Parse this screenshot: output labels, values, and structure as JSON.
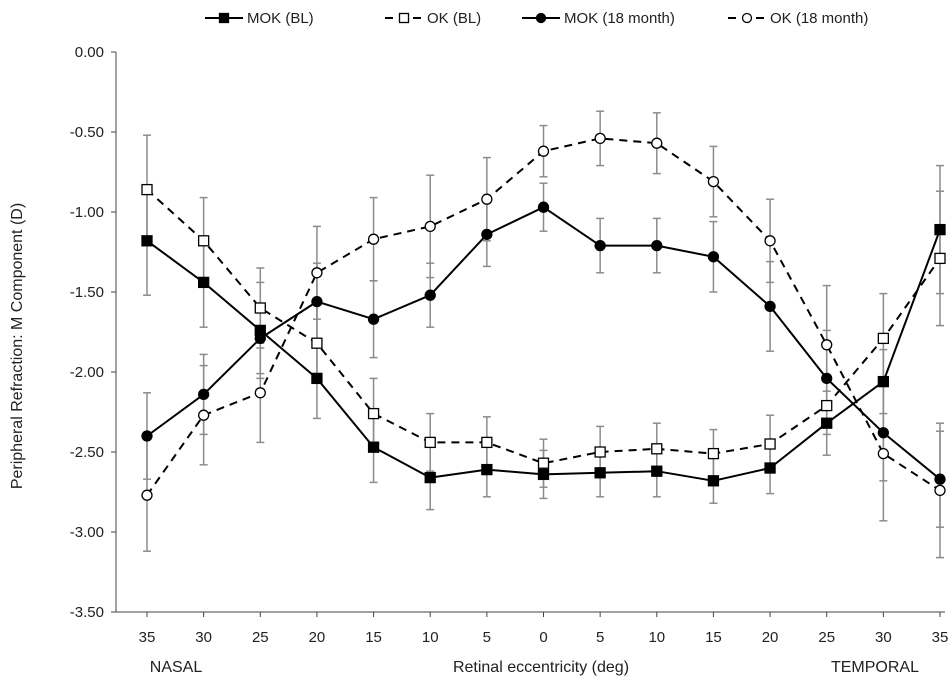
{
  "chart_data": {
    "type": "line",
    "title": "",
    "xlabel": "Retinal eccentricity (deg)",
    "ylabel": "Peripheral Refraction: M  Component (D)",
    "region_labels": {
      "left": "NASAL",
      "right": "TEMPORAL"
    },
    "categories": [
      "35",
      "30",
      "25",
      "20",
      "15",
      "10",
      "5",
      "0",
      "5",
      "10",
      "15",
      "20",
      "25",
      "30",
      "35"
    ],
    "ylim": [
      -3.5,
      0.0
    ],
    "yticks": [
      "0.00",
      "-0.50",
      "-1.00",
      "-1.50",
      "-2.00",
      "-2.50",
      "-3.00",
      "-3.50"
    ],
    "grid": false,
    "legend_position": "top",
    "series": [
      {
        "name": "MOK (BL)",
        "line": "solid",
        "marker": "square",
        "filled": true,
        "values": [
          -1.18,
          -1.44,
          -1.74,
          -2.04,
          -2.47,
          -2.66,
          -2.61,
          -2.64,
          -2.63,
          -2.62,
          -2.68,
          -2.6,
          -2.32,
          -2.06,
          -1.11
        ],
        "errors": [
          0.34,
          0.28,
          0.3,
          0.25,
          0.22,
          0.2,
          0.17,
          0.15,
          0.15,
          0.16,
          0.14,
          0.16,
          0.2,
          0.2,
          0.4
        ]
      },
      {
        "name": "OK (BL)",
        "line": "dashed",
        "marker": "square",
        "filled": false,
        "values": [
          -0.86,
          -1.18,
          -1.6,
          -1.82,
          -2.26,
          -2.44,
          -2.44,
          -2.57,
          -2.5,
          -2.48,
          -2.51,
          -2.45,
          -2.21,
          -1.79,
          -1.29
        ],
        "errors": [
          0.34,
          0.27,
          0.25,
          0.25,
          0.22,
          0.18,
          0.16,
          0.15,
          0.16,
          0.16,
          0.15,
          0.18,
          0.18,
          0.28,
          0.42
        ]
      },
      {
        "name": "MOK (18 month)",
        "line": "solid",
        "marker": "circle",
        "filled": true,
        "values": [
          -2.4,
          -2.14,
          -1.79,
          -1.56,
          -1.67,
          -1.52,
          -1.14,
          -0.97,
          -1.21,
          -1.21,
          -1.28,
          -1.59,
          -2.04,
          -2.38,
          -2.67
        ],
        "errors": [
          0.27,
          0.25,
          0.22,
          0.24,
          0.24,
          0.2,
          0.2,
          0.15,
          0.17,
          0.17,
          0.22,
          0.28,
          0.3,
          0.3,
          0.3
        ]
      },
      {
        "name": "OK (18 month)",
        "line": "dashed",
        "marker": "circle",
        "filled": false,
        "values": [
          -2.77,
          -2.27,
          -2.13,
          -1.38,
          -1.17,
          -1.09,
          -0.92,
          -0.62,
          -0.54,
          -0.57,
          -0.81,
          -1.18,
          -1.83,
          -2.51,
          -2.74
        ],
        "errors": [
          0.35,
          0.31,
          0.31,
          0.29,
          0.26,
          0.32,
          0.26,
          0.16,
          0.17,
          0.19,
          0.22,
          0.26,
          0.37,
          0.42,
          0.42
        ]
      }
    ]
  }
}
